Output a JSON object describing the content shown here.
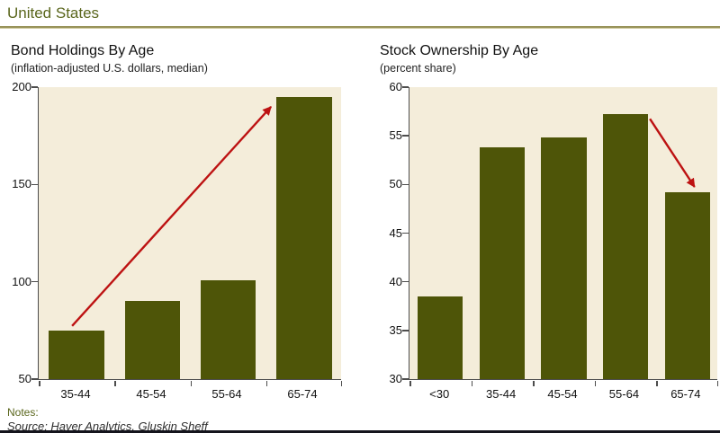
{
  "page": {
    "title": "United States",
    "notes_label": "Notes:",
    "source_text": "Source: Haver Analytics, Gluskin Sheff"
  },
  "colors": {
    "title_olive": "#5a661c",
    "header_rule": "#98935a",
    "bar_fill": "#4e5508",
    "plot_bg": "#f4edda",
    "axis": "#4d4d4d",
    "arrow_red": "#bd1212",
    "bottom_rule": "#14141c"
  },
  "chart_data": [
    {
      "type": "bar",
      "title": "Bond Holdings By Age",
      "subtitle": "(inflation-adjusted U.S. dollars, median)",
      "categories": [
        "35-44",
        "45-54",
        "55-64",
        "65-74"
      ],
      "values": [
        75,
        90,
        101,
        195
      ],
      "ylim": [
        50,
        200
      ],
      "yticks": [
        50,
        100,
        150,
        200
      ],
      "grid": false,
      "legend": "none",
      "annotation": {
        "type": "arrow",
        "direction": "up",
        "from_category": "35-44",
        "to_category": "65-74"
      }
    },
    {
      "type": "bar",
      "title": "Stock Ownership By Age",
      "subtitle": "(percent share)",
      "categories": [
        "<30",
        "35-44",
        "45-54",
        "55-64",
        "65-74"
      ],
      "values": [
        38.5,
        53.8,
        54.8,
        57.2,
        49.2
      ],
      "ylim": [
        30,
        60
      ],
      "yticks": [
        30,
        35,
        40,
        45,
        50,
        55,
        60
      ],
      "grid": false,
      "legend": "none",
      "annotation": {
        "type": "arrow",
        "direction": "down",
        "from_category": "55-64",
        "to_category": "65-74"
      }
    }
  ]
}
